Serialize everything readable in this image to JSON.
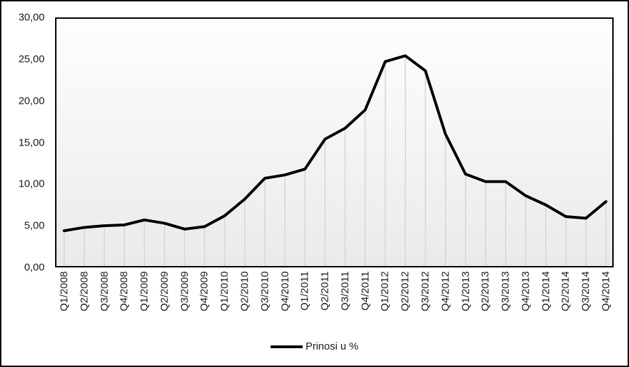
{
  "chart_data": {
    "type": "line",
    "title": "",
    "legend": "Prinosi u %",
    "legend_position": "bottom",
    "categories": [
      "Q1/2008",
      "Q2/2008",
      "Q3/2008",
      "Q4/2008",
      "Q1/2009",
      "Q2/2009",
      "Q3/2009",
      "Q4/2009",
      "Q1/2010",
      "Q2/2010",
      "Q3/2010",
      "Q4/2010",
      "Q1/2011",
      "Q2/2011",
      "Q3/2011",
      "Q4/2011",
      "Q1/2012",
      "Q2/2012",
      "Q3/2012",
      "Q4/2012",
      "Q1/2013",
      "Q2/2013",
      "Q3/2013",
      "Q4/2013",
      "Q1/2014",
      "Q2/2014",
      "Q3/2014",
      "Q4/2014"
    ],
    "series": [
      {
        "name": "Prinosi u %",
        "values": [
          4.4,
          4.8,
          5.0,
          5.1,
          5.7,
          5.3,
          4.6,
          4.9,
          6.2,
          8.2,
          10.7,
          11.1,
          11.8,
          15.4,
          16.7,
          18.9,
          24.7,
          25.4,
          23.6,
          16.0,
          11.2,
          10.3,
          10.3,
          8.6,
          7.5,
          6.1,
          5.9,
          7.9
        ]
      }
    ],
    "xlabel": "",
    "ylabel": "",
    "ylim": [
      0,
      30
    ],
    "ytick_values": [
      0,
      5,
      10,
      15,
      20,
      25,
      30
    ],
    "ytick_labels": [
      "0,00",
      "5,00",
      "10,00",
      "15,00",
      "20,00",
      "25,00",
      "30,00"
    ],
    "grid": "drop-lines",
    "colors": {
      "line": "#000000",
      "drop_line": "#d6d6d6",
      "plot_bg_top": "#fefefe",
      "plot_bg_bottom": "#eaeaea",
      "border": "#000000",
      "text": "#1a1a1a"
    }
  }
}
